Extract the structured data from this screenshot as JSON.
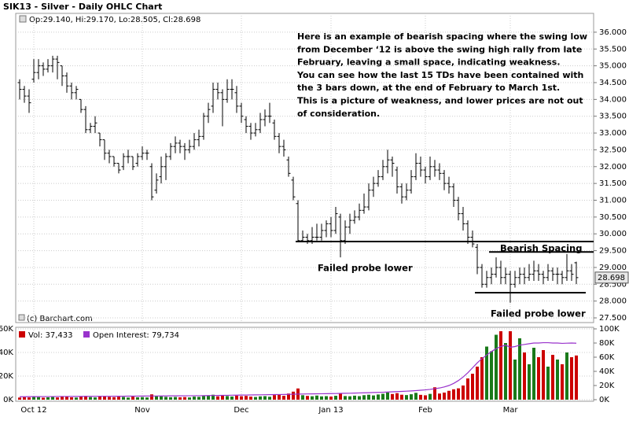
{
  "chart_data": [
    {
      "type": "ohlc",
      "title": "SIK13 - Silver - Daily OHLC Chart",
      "ohlc_label": "Op:29.140, Hi:29.170, Lo:28.505, Cl:28.698",
      "color": "#000000",
      "open": [
        34.5,
        34.3,
        34.1,
        34.6,
        34.8,
        35.0,
        34.9,
        35.0,
        35.2,
        35.0,
        34.7,
        34.4,
        34.2,
        34.0,
        33.7,
        33.1,
        33.2,
        33.0,
        32.8,
        32.4,
        32.3,
        32.1,
        32.0,
        32.3,
        32.3,
        32.1,
        32.3,
        32.4,
        32.0,
        31.3,
        31.7,
        32.0,
        32.3,
        32.6,
        32.7,
        32.6,
        32.5,
        32.6,
        32.8,
        32.9,
        33.5,
        33.8,
        34.3,
        34.2,
        34.0,
        34.3,
        34.2,
        33.8,
        33.4,
        33.2,
        33.0,
        33.1,
        33.4,
        33.5,
        33.3,
        32.9,
        32.6,
        32.2,
        31.6,
        30.9,
        29.8,
        29.9,
        29.8,
        29.9,
        29.9,
        30.1,
        30.3,
        30.1,
        30.5,
        29.8,
        30.2,
        30.4,
        30.5,
        30.7,
        30.8,
        31.3,
        31.5,
        31.7,
        32.0,
        32.2,
        31.9,
        31.4,
        31.1,
        31.3,
        31.7,
        32.1,
        31.9,
        31.7,
        32.0,
        31.9,
        31.8,
        31.5,
        31.4,
        31.0,
        30.6,
        30.3,
        29.9,
        29.6,
        29.0,
        28.5,
        28.7,
        28.8,
        29.0,
        28.7,
        28.8,
        28.5,
        28.7,
        28.8,
        28.7,
        28.8,
        28.9,
        28.8,
        28.7,
        28.9,
        28.8,
        28.8,
        28.7,
        28.9,
        29.14
      ],
      "high": [
        34.6,
        34.4,
        34.3,
        35.2,
        35.2,
        35.1,
        35.2,
        35.3,
        35.3,
        35.0,
        34.8,
        34.5,
        34.4,
        34.0,
        33.8,
        33.3,
        33.5,
        33.0,
        32.8,
        32.5,
        32.3,
        32.1,
        32.4,
        32.5,
        32.3,
        32.4,
        32.6,
        32.5,
        32.1,
        31.8,
        32.3,
        32.4,
        32.7,
        32.9,
        32.8,
        32.7,
        32.8,
        33.0,
        33.1,
        33.6,
        33.9,
        34.5,
        34.5,
        34.3,
        34.6,
        34.6,
        34.4,
        33.9,
        33.5,
        33.3,
        33.3,
        33.6,
        33.7,
        33.9,
        33.4,
        33.0,
        32.8,
        32.3,
        31.7,
        31.0,
        30.1,
        30.0,
        30.2,
        30.3,
        30.3,
        30.4,
        30.5,
        30.8,
        30.6,
        30.4,
        30.6,
        30.7,
        30.9,
        31.2,
        31.5,
        31.7,
        31.9,
        32.2,
        32.5,
        32.3,
        32.0,
        31.5,
        31.5,
        31.9,
        32.4,
        32.3,
        32.0,
        32.3,
        32.2,
        32.1,
        31.9,
        31.7,
        31.5,
        31.1,
        30.8,
        30.4,
        30.1,
        29.7,
        29.1,
        28.9,
        29.0,
        29.3,
        29.2,
        29.0,
        28.9,
        28.9,
        29.0,
        29.0,
        29.1,
        29.2,
        29.1,
        28.9,
        29.1,
        29.0,
        29.0,
        28.9,
        29.4,
        29.1,
        29.17
      ],
      "low": [
        34.0,
        33.9,
        33.6,
        34.5,
        34.6,
        34.7,
        34.8,
        34.8,
        34.6,
        34.4,
        34.2,
        34.0,
        34.0,
        33.6,
        33.0,
        33.0,
        33.0,
        32.6,
        32.2,
        32.1,
        32.0,
        31.8,
        31.9,
        32.1,
        31.9,
        32.0,
        32.2,
        32.2,
        31.0,
        31.2,
        31.5,
        31.6,
        32.2,
        32.4,
        32.4,
        32.2,
        32.4,
        32.5,
        32.6,
        32.8,
        33.3,
        33.6,
        34.0,
        33.2,
        33.9,
        34.0,
        33.6,
        33.3,
        33.0,
        32.8,
        32.9,
        33.0,
        33.2,
        33.3,
        32.8,
        32.4,
        32.3,
        31.7,
        31.0,
        29.75,
        29.75,
        29.7,
        29.7,
        29.8,
        29.8,
        29.9,
        29.9,
        30.0,
        29.3,
        29.7,
        30.0,
        30.3,
        30.4,
        30.6,
        30.7,
        31.1,
        31.4,
        31.6,
        31.8,
        31.7,
        31.2,
        30.9,
        31.0,
        31.2,
        31.6,
        31.7,
        31.5,
        31.6,
        31.7,
        31.6,
        31.3,
        31.2,
        30.8,
        30.4,
        30.1,
        29.7,
        29.6,
        28.8,
        28.4,
        28.4,
        28.5,
        28.7,
        28.5,
        28.5,
        27.95,
        28.4,
        28.5,
        28.5,
        28.6,
        28.6,
        28.6,
        28.5,
        28.6,
        28.6,
        28.5,
        28.5,
        28.6,
        28.6,
        28.505
      ],
      "close": [
        34.3,
        34.1,
        33.9,
        34.8,
        35.0,
        34.9,
        35.0,
        35.2,
        35.1,
        34.7,
        34.4,
        34.2,
        34.3,
        33.7,
        33.1,
        33.2,
        33.3,
        32.8,
        32.4,
        32.3,
        32.1,
        31.9,
        32.3,
        32.3,
        32.0,
        32.3,
        32.4,
        32.4,
        31.1,
        31.6,
        32.0,
        32.3,
        32.6,
        32.7,
        32.6,
        32.5,
        32.6,
        32.8,
        32.9,
        33.5,
        33.7,
        34.3,
        34.2,
        34.0,
        34.3,
        34.3,
        33.8,
        33.5,
        33.2,
        33.0,
        33.1,
        33.4,
        33.5,
        33.5,
        32.9,
        32.6,
        32.5,
        31.8,
        31.1,
        29.8,
        29.9,
        29.8,
        29.9,
        29.9,
        30.1,
        30.3,
        30.1,
        30.6,
        29.8,
        30.2,
        30.4,
        30.5,
        30.7,
        30.8,
        31.3,
        31.5,
        31.7,
        32.0,
        32.2,
        32.1,
        31.4,
        31.1,
        31.3,
        31.7,
        32.1,
        31.9,
        31.7,
        32.0,
        31.9,
        31.8,
        31.5,
        31.4,
        31.0,
        30.6,
        30.3,
        29.9,
        29.7,
        29.0,
        28.5,
        28.7,
        28.8,
        29.0,
        28.7,
        28.8,
        28.5,
        28.7,
        28.8,
        28.7,
        28.8,
        28.9,
        28.8,
        28.7,
        28.9,
        28.8,
        28.8,
        28.7,
        28.9,
        28.8,
        28.698
      ],
      "ylim": [
        27.36,
        36.56
      ],
      "yticks": [
        {
          "value": 27.5,
          "label": "27.500"
        },
        {
          "value": 28,
          "label": "28.000"
        },
        {
          "value": 28.5,
          "label": "28.500"
        },
        {
          "value": 29,
          "label": "29.000"
        },
        {
          "value": 29.5,
          "label": "29.500"
        },
        {
          "value": 30,
          "label": "30.000"
        },
        {
          "value": 30.5,
          "label": "30.500"
        },
        {
          "value": 31,
          "label": "31.000"
        },
        {
          "value": 31.5,
          "label": "31.500"
        },
        {
          "value": 32,
          "label": "32.000"
        },
        {
          "value": 32.5,
          "label": "32.500"
        },
        {
          "value": 33,
          "label": "33.000"
        },
        {
          "value": 33.5,
          "label": "33.500"
        },
        {
          "value": 34,
          "label": "34.000"
        },
        {
          "value": 34.5,
          "label": "34.500"
        },
        {
          "value": 35,
          "label": "35.000"
        },
        {
          "value": 35.5,
          "label": "35.500"
        },
        {
          "value": 36,
          "label": "36.000"
        }
      ],
      "grid": true,
      "notes": [
        "Here is an example of bearish spacing where the swing low",
        "from December ‘12 is above the swing high rally from late",
        "February, leaving a small space, indicating weakness.",
        "You can see how  the last 15 TDs have been contained with",
        "the 3 bars down, at the end of February to March 1st.",
        "This is a picture of weakness, and lower prices are not out",
        "of consideration."
      ],
      "annotations": [
        "Bearish Spacing",
        "Failed probe lower",
        "Failed probe lower"
      ],
      "hlines": [
        {
          "value": 29.77,
          "start": 59,
          "end": 122
        },
        {
          "value": 29.46,
          "start": 100,
          "end": 122
        },
        {
          "value": 28.25,
          "start": 97,
          "end": 120
        }
      ],
      "credit": "(c) Barchart.com"
    },
    {
      "type": "bar",
      "categories": [
        null,
        null,
        null,
        "Oct 12",
        null,
        null,
        null,
        null,
        null,
        null,
        null,
        null,
        null,
        null,
        null,
        null,
        null,
        null,
        null,
        null,
        null,
        null,
        null,
        null,
        null,
        null,
        "Nov",
        null,
        null,
        null,
        null,
        null,
        null,
        null,
        null,
        null,
        null,
        null,
        null,
        null,
        null,
        null,
        null,
        null,
        null,
        null,
        null,
        "Dec",
        null,
        null,
        null,
        null,
        null,
        null,
        null,
        null,
        null,
        null,
        null,
        null,
        null,
        null,
        null,
        null,
        null,
        null,
        "Jan 13",
        null,
        null,
        null,
        null,
        null,
        null,
        null,
        null,
        null,
        null,
        null,
        null,
        null,
        null,
        null,
        null,
        null,
        null,
        null,
        "Feb",
        null,
        null,
        null,
        null,
        null,
        null,
        null,
        null,
        null,
        null,
        null,
        null,
        null,
        null,
        null,
        null,
        null,
        "Mar",
        null,
        null,
        null,
        null,
        null,
        null,
        null,
        null,
        null,
        null,
        null,
        null,
        null,
        null
      ],
      "series": [
        {
          "name": "Vol: 37,433",
          "color": "#cc0000",
          "up_color": "#1a7a1a",
          "values": [
            1800,
            2100,
            1900,
            2500,
            2200,
            1700,
            2000,
            2300,
            1900,
            2600,
            2400,
            2000,
            1800,
            2900,
            3100,
            2200,
            1900,
            2700,
            3000,
            2400,
            2100,
            2500,
            2300,
            1800,
            2600,
            2000,
            2200,
            1900,
            4500,
            3200,
            2800,
            2400,
            2100,
            2300,
            2000,
            2200,
            1900,
            2600,
            2400,
            3000,
            3500,
            4200,
            2800,
            3600,
            3100,
            2700,
            3400,
            2900,
            3200,
            2600,
            2300,
            2800,
            3000,
            2500,
            3900,
            4600,
            3300,
            5200,
            6800,
            9500,
            3800,
            3200,
            2900,
            3500,
            2800,
            3000,
            2600,
            3300,
            5600,
            3100,
            2900,
            3400,
            3000,
            3800,
            4200,
            3600,
            4400,
            5000,
            6100,
            4800,
            5500,
            4200,
            3900,
            4600,
            5800,
            4100,
            3700,
            4900,
            10500,
            5200,
            6000,
            7500,
            8800,
            9600,
            12000,
            18000,
            22000,
            28000,
            36000,
            45000,
            41000,
            55000,
            58000,
            48000,
            58000,
            34000,
            52000,
            40000,
            30000,
            44000,
            36000,
            42000,
            28000,
            38000,
            34000,
            30000,
            40000,
            36000,
            37433
          ]
        },
        {
          "name": "Open Interest: 79,734",
          "color": "#9933cc",
          "axis": "y2",
          "values": [
            4200,
            4200,
            4300,
            4300,
            4300,
            4400,
            4400,
            4400,
            4500,
            4500,
            4500,
            4600,
            4600,
            4600,
            4700,
            4700,
            4700,
            4800,
            4800,
            4800,
            4900,
            4900,
            4900,
            5000,
            5000,
            5000,
            5100,
            5100,
            5200,
            5200,
            5300,
            5300,
            5400,
            5400,
            5400,
            5500,
            5500,
            5600,
            5600,
            5700,
            5800,
            5900,
            6000,
            6100,
            6200,
            6300,
            6400,
            6500,
            6600,
            6700,
            6800,
            6900,
            7000,
            7100,
            7200,
            7300,
            7400,
            7500,
            7700,
            7900,
            8000,
            8100,
            8200,
            8300,
            8400,
            8500,
            8600,
            8700,
            8900,
            9000,
            9100,
            9300,
            9500,
            9700,
            9900,
            10100,
            10300,
            10500,
            10800,
            11100,
            11400,
            11700,
            12000,
            12400,
            12800,
            13300,
            13800,
            14500,
            15500,
            16500,
            18000,
            20000,
            23000,
            27000,
            32000,
            38000,
            45000,
            52000,
            58000,
            63000,
            68000,
            72000,
            75000,
            77000,
            74000,
            75000,
            77000,
            78000,
            79000,
            80000,
            80000,
            80500,
            80500,
            80000,
            80000,
            79500,
            79800,
            80000,
            79734
          ]
        }
      ],
      "ylim": [
        0,
        60000
      ],
      "yticks": [
        {
          "value": 0,
          "label": "0K"
        },
        {
          "value": 20000,
          "label": "20K"
        },
        {
          "value": 40000,
          "label": "40K"
        },
        {
          "value": 60000,
          "label": "60K"
        }
      ],
      "y2lim": [
        0,
        100000
      ],
      "y2ticks": [
        {
          "value": 0,
          "label": "0K"
        },
        {
          "value": 20000,
          "label": "20K"
        },
        {
          "value": 40000,
          "label": "40K"
        },
        {
          "value": 60000,
          "label": "60K"
        },
        {
          "value": 80000,
          "label": "80K"
        },
        {
          "value": 100000,
          "label": "100K"
        }
      ],
      "grid": true
    }
  ]
}
